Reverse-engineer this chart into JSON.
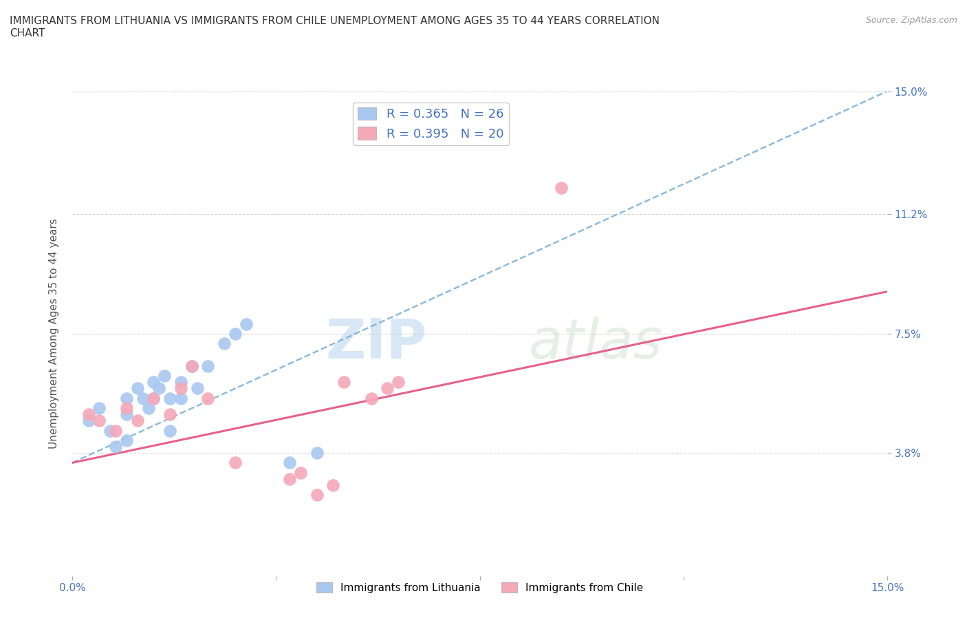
{
  "title": "IMMIGRANTS FROM LITHUANIA VS IMMIGRANTS FROM CHILE UNEMPLOYMENT AMONG AGES 35 TO 44 YEARS CORRELATION\nCHART",
  "source": "Source: ZipAtlas.com",
  "ylabel": "Unemployment Among Ages 35 to 44 years",
  "xmin": 0.0,
  "xmax": 15.0,
  "ymin": 0.0,
  "ymax": 15.0,
  "lithuania_color": "#a8c8f0",
  "chile_color": "#f4a8b8",
  "lithuania_trend_color": "#7bafd4",
  "chile_trend_color": "#e8608a",
  "lithuania_R": 0.365,
  "lithuania_N": 26,
  "chile_R": 0.395,
  "chile_N": 20,
  "watermark_zip": "ZIP",
  "watermark_atlas": "atlas",
  "background_color": "#ffffff",
  "grid_color": "#cccccc",
  "lithuania_x": [
    0.3,
    0.5,
    0.7,
    0.8,
    1.0,
    1.0,
    1.0,
    1.2,
    1.3,
    1.4,
    1.5,
    1.5,
    1.6,
    1.7,
    1.8,
    1.8,
    2.0,
    2.0,
    2.2,
    2.3,
    2.5,
    2.8,
    3.0,
    3.2,
    4.0,
    4.5
  ],
  "lithuania_y": [
    4.8,
    5.2,
    4.5,
    4.0,
    5.5,
    5.0,
    4.2,
    5.8,
    5.5,
    5.2,
    6.0,
    5.5,
    5.8,
    6.2,
    4.5,
    5.5,
    5.5,
    6.0,
    6.5,
    5.8,
    6.5,
    7.2,
    7.5,
    7.8,
    3.5,
    3.8
  ],
  "chile_x": [
    0.3,
    0.5,
    0.8,
    1.0,
    1.2,
    1.5,
    1.8,
    2.0,
    2.2,
    2.5,
    3.0,
    4.0,
    4.5,
    5.0,
    5.5,
    5.8,
    6.0,
    4.2,
    4.8,
    9.0
  ],
  "chile_y": [
    5.0,
    4.8,
    4.5,
    5.2,
    4.8,
    5.5,
    5.0,
    5.8,
    6.5,
    5.5,
    3.5,
    3.0,
    2.5,
    6.0,
    5.5,
    5.8,
    6.0,
    3.2,
    2.8,
    12.0
  ],
  "lith_trend_x0": 0.0,
  "lith_trend_y0": 3.5,
  "lith_trend_x1": 15.0,
  "lith_trend_y1": 15.0,
  "chile_trend_x0": 0.0,
  "chile_trend_y0": 3.5,
  "chile_trend_x1": 15.0,
  "chile_trend_y1": 8.8
}
